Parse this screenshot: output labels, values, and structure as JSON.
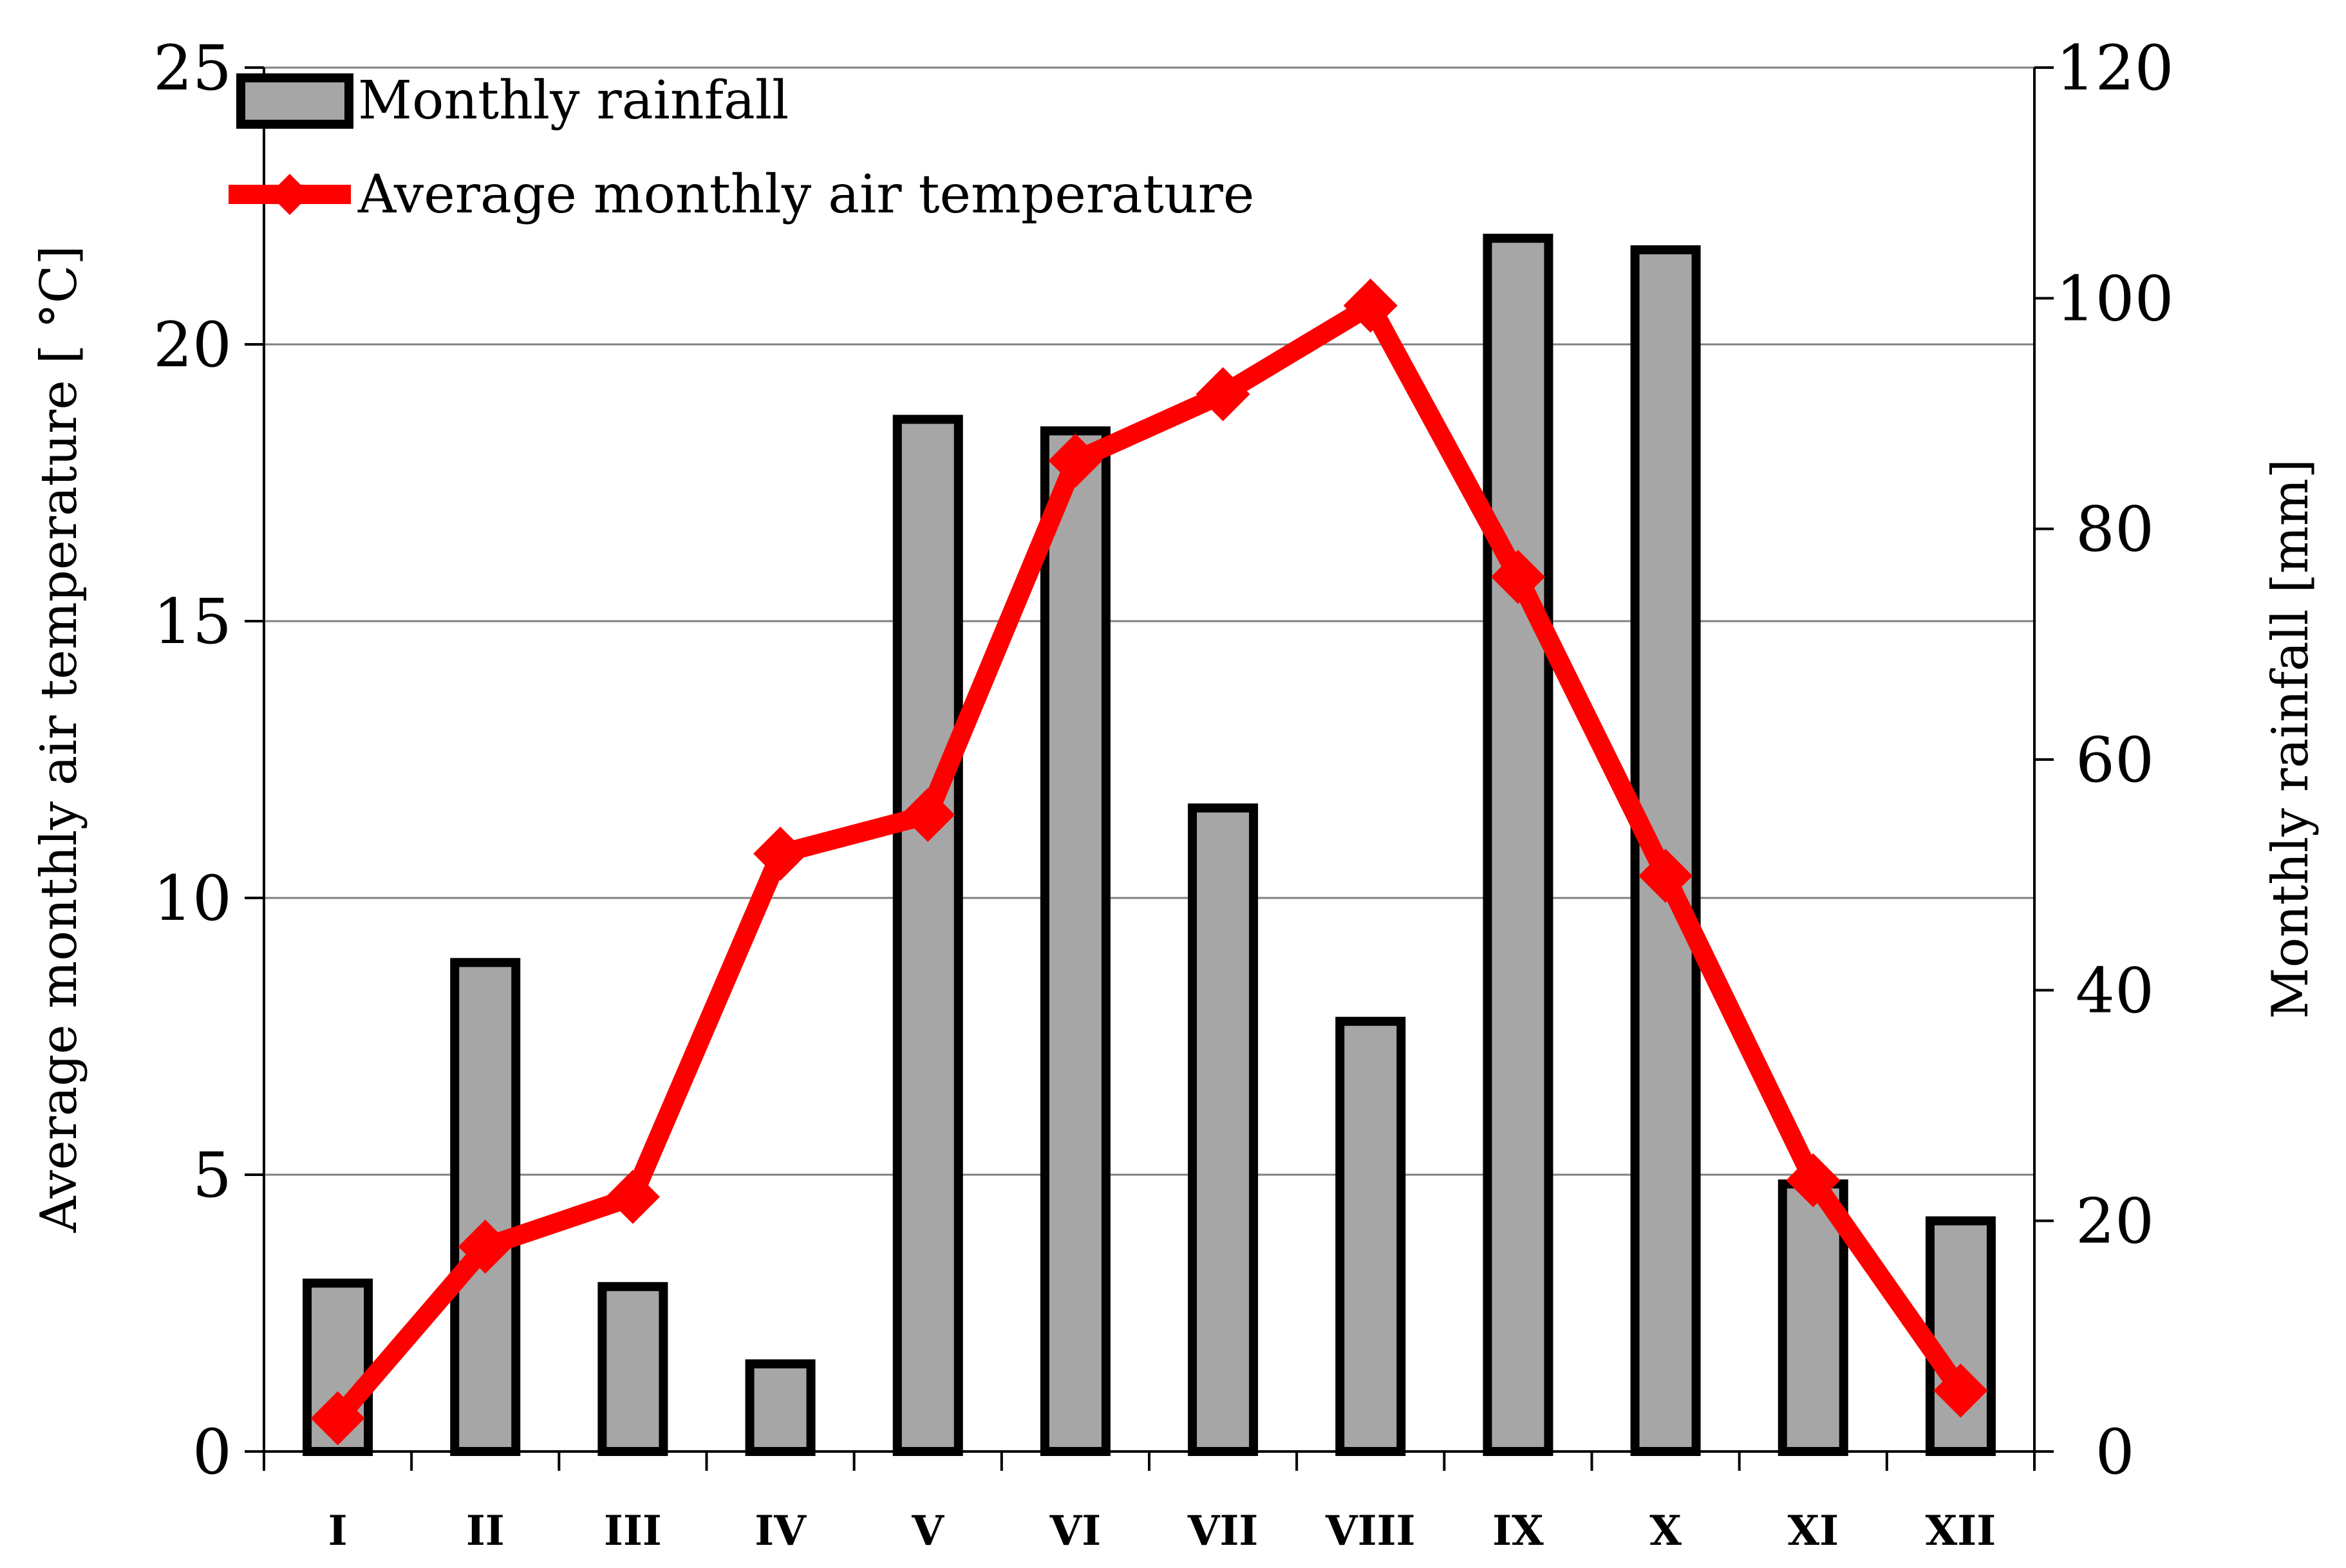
{
  "chart_data": {
    "type": "bar+line",
    "categories": [
      "I",
      "II",
      "III",
      "IV",
      "V",
      "VI",
      "VII",
      "VIII",
      "IX",
      "X",
      "XI",
      "XII"
    ],
    "series": [
      {
        "name": "Monthly rainfall",
        "kind": "bar",
        "axis": "right",
        "values": [
          14.6,
          42.4,
          14.3,
          7.6,
          89.5,
          88.5,
          55.8,
          37.3,
          105.2,
          104.2,
          23.2,
          20.0
        ]
      },
      {
        "name": "Average monthly air temperature",
        "kind": "line",
        "axis": "left",
        "values": [
          0.6,
          3.7,
          4.6,
          10.8,
          11.5,
          17.9,
          19.1,
          20.7,
          15.8,
          10.4,
          4.9,
          1.1
        ]
      }
    ],
    "left_axis": {
      "label": "Average monthly air temperature [ °C]",
      "min": 0,
      "max": 25,
      "ticks": [
        "0",
        "5",
        "10",
        "15",
        "20",
        "25"
      ]
    },
    "right_axis": {
      "label": "Monthly rainfall [mm]",
      "min": 0,
      "max": 120,
      "ticks": [
        "0",
        "20",
        "40",
        "60",
        "80",
        "100",
        "120"
      ]
    },
    "grid": true,
    "legend": {
      "position": "top-left",
      "items": [
        "Monthly rainfall",
        "Average monthly air temperature"
      ]
    },
    "colors": {
      "bar_fill": "#a6a6a6",
      "bar_stroke": "#000000",
      "line": "#ff0000",
      "grid": "#808080"
    }
  }
}
